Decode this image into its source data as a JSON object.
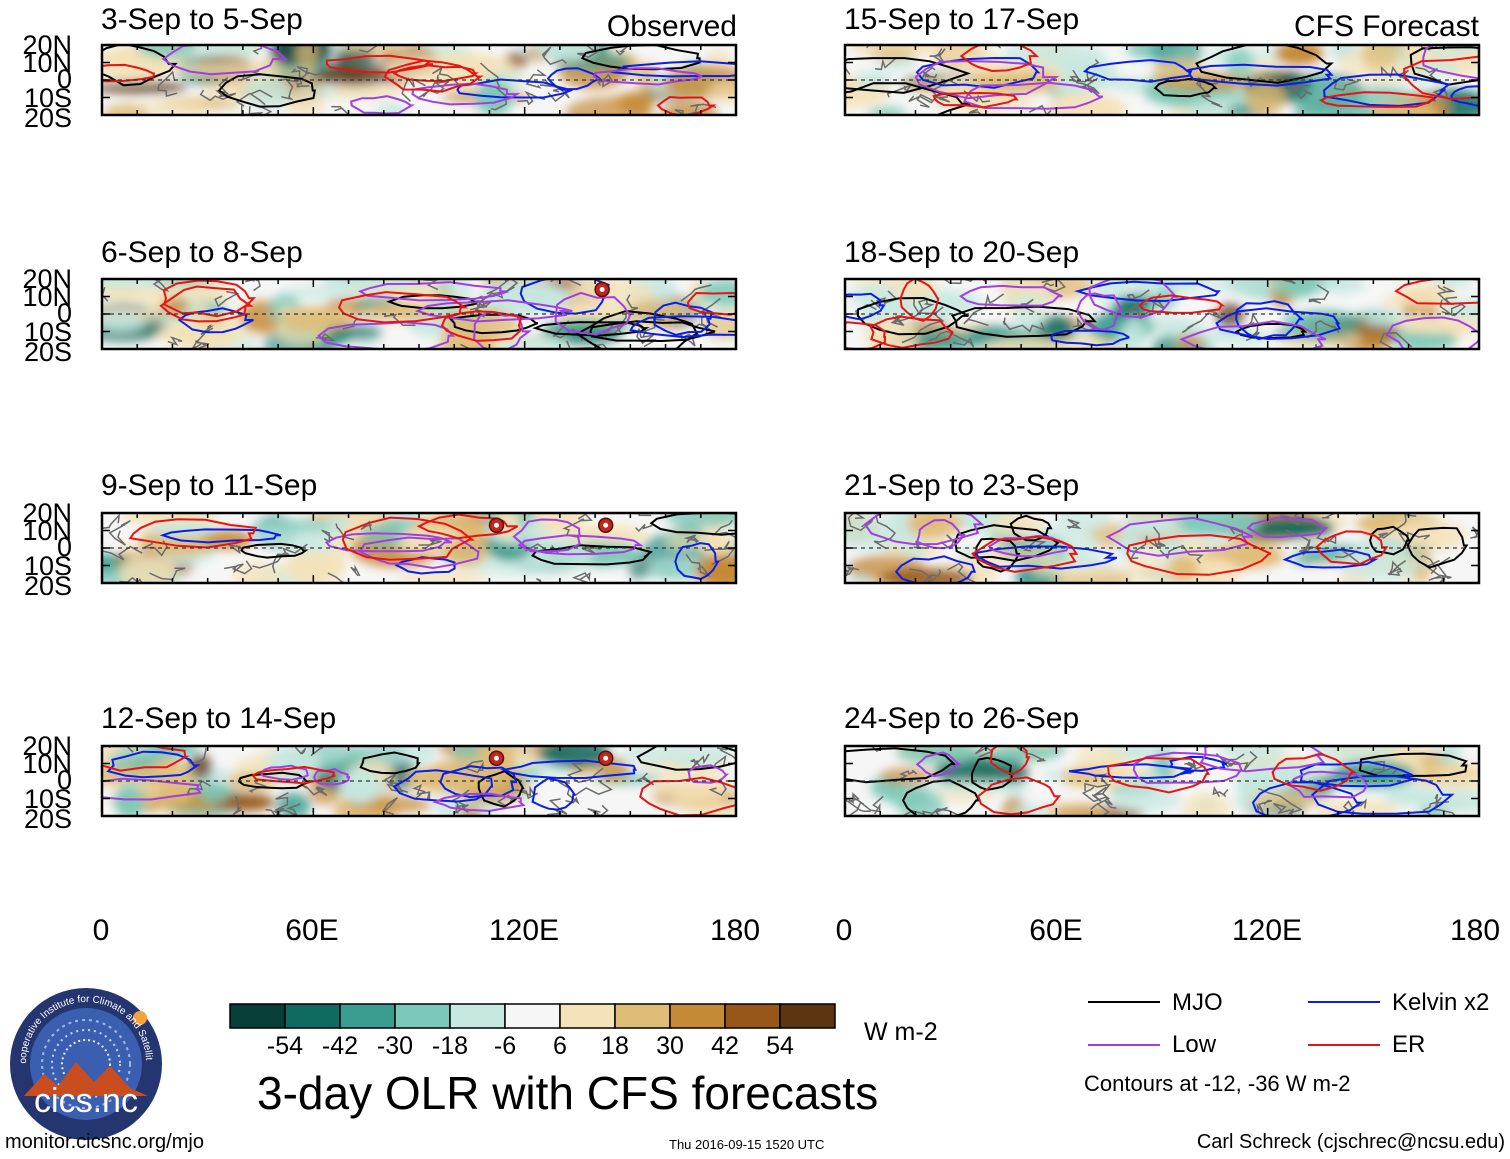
{
  "chart_data": {
    "type": "heatmap",
    "title": "3-day OLR with CFS forecasts",
    "variable": "OLR anomaly",
    "units": "W m-2",
    "columns": [
      {
        "label": "Observed",
        "panels": [
          {
            "title": "3-Sep to 5-Sep",
            "cyclones": []
          },
          {
            "title": "6-Sep to 8-Sep",
            "cyclones": [
              {
                "lon": 142,
                "lat": 14
              }
            ]
          },
          {
            "title": "9-Sep to 11-Sep",
            "cyclones": [
              {
                "lon": 112,
                "lat": 13
              },
              {
                "lon": 143,
                "lat": 13
              }
            ]
          },
          {
            "title": "12-Sep to 14-Sep",
            "cyclones": [
              {
                "lon": 112,
                "lat": 13
              },
              {
                "lon": 143,
                "lat": 13
              }
            ]
          }
        ]
      },
      {
        "label": "CFS Forecast",
        "panels": [
          {
            "title": "15-Sep to 17-Sep",
            "cyclones": []
          },
          {
            "title": "18-Sep to 20-Sep",
            "cyclones": []
          },
          {
            "title": "21-Sep to 23-Sep",
            "cyclones": []
          },
          {
            "title": "24-Sep to 26-Sep",
            "cyclones": []
          }
        ]
      }
    ],
    "x_axis": {
      "range": [
        0,
        180
      ],
      "ticks": [
        0,
        60,
        120,
        180
      ],
      "tick_labels": [
        "0",
        "60E",
        "120E",
        "180"
      ]
    },
    "y_axis": {
      "range": [
        -20,
        20
      ],
      "ticks": [
        20,
        10,
        0,
        -10,
        -20
      ],
      "tick_labels": [
        "20N",
        "10N",
        "0",
        "10S",
        "20S"
      ]
    },
    "colorbar": {
      "colors": [
        "#063f35",
        "#0f6b5f",
        "#3a9c8f",
        "#7cc8b8",
        "#c6e8e0",
        "#f6f6f6",
        "#f4e2b8",
        "#dfbc78",
        "#c58a36",
        "#97571a",
        "#5d3511"
      ],
      "labels": [
        "-54",
        "-42",
        "-30",
        "-18",
        "-6",
        "6",
        "18",
        "30",
        "42",
        "54"
      ],
      "units": "W m-2"
    },
    "legend": [
      {
        "label": "MJO",
        "color": "#000000"
      },
      {
        "label": "Kelvin x2",
        "color": "#0a1ee6"
      },
      {
        "label": "Low",
        "color": "#a040e0"
      },
      {
        "label": "ER",
        "color": "#e61414"
      }
    ],
    "contour_note": "Contours at -12, -36 W m-2"
  },
  "footer": {
    "left": "monitor.cicsnc.org/mjo",
    "center": "Thu 2016-09-15 1520 UTC",
    "right": "Carl Schreck (cjschrec@ncsu.edu)"
  },
  "logo": {
    "text": "cics.nc",
    "ring_text": "Cooperative Institute for Climate and Satellites"
  }
}
